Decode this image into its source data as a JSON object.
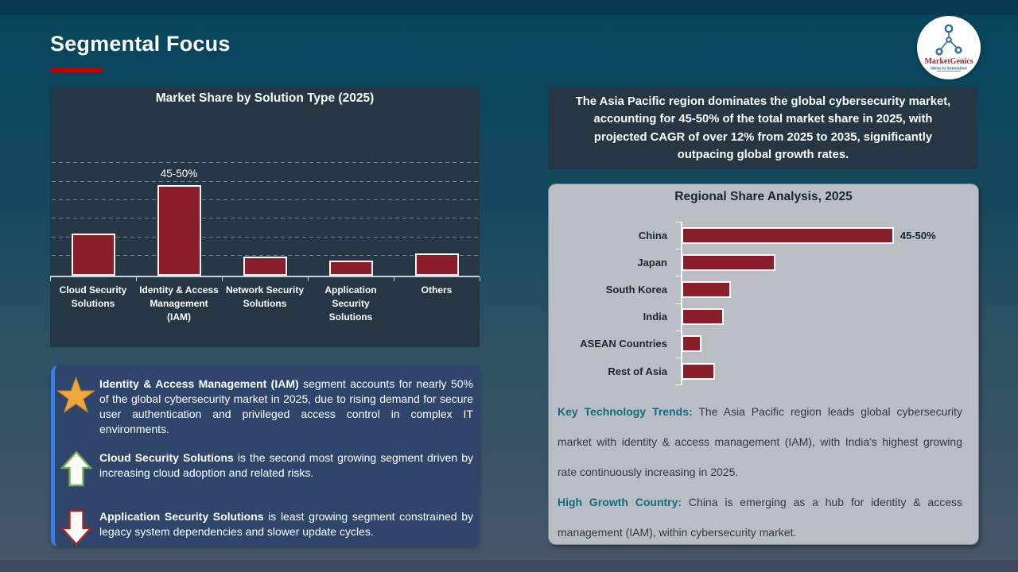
{
  "slide": {
    "title": "Segmental Focus",
    "logo": {
      "brand": "MarketGenics",
      "tagline": "Ideas to Innovation",
      "icon": "network-nodes-icon"
    }
  },
  "colors": {
    "bar_red": "#8A1E2A",
    "accent_red": "#C00000",
    "panel_dark": "#253744",
    "notes_navy": "#30456C",
    "notes_border_blue": "#3E7CDC",
    "gray_panel": "#B9BEC5",
    "teal_label": "#166A7D"
  },
  "chart_data": [
    {
      "type": "bar",
      "title": "Market Share by Solution Type (2025)",
      "categories": [
        "Cloud Security Solutions",
        "Identity & Access Management (IAM)",
        "Network Security Solutions",
        "Application Security Solutions",
        "Others"
      ],
      "values": [
        22,
        47.5,
        10,
        8,
        11.5
      ],
      "data_labels": [
        "",
        "45-50%",
        "",
        "",
        ""
      ],
      "xlabel": "",
      "ylabel": "",
      "ylim": [
        0,
        55
      ],
      "grid": "dashed-horizontal",
      "bar_color": "#8A1E2A",
      "legend": "none"
    },
    {
      "type": "bar",
      "orientation": "horizontal",
      "title": "Regional Share Analysis, 2025",
      "categories": [
        "China",
        "Japan",
        "South Korea",
        "India",
        "ASEAN Countries",
        "Rest of Asia"
      ],
      "values": [
        47.5,
        21,
        11,
        9.5,
        4.5,
        7.5
      ],
      "data_labels": [
        "45-50%",
        "",
        "",
        "",
        "",
        ""
      ],
      "xlim": [
        0,
        55
      ],
      "bar_color": "#8A1E2A",
      "legend": "none"
    }
  ],
  "insight_box": {
    "items": [
      {
        "icon": "star-icon",
        "bold": "Identity & Access Management (IAM)",
        "text": " segment accounts for nearly 50% of the global cybersecurity market in 2025, due to rising demand for secure user authentication and privileged access control in complex IT environments."
      },
      {
        "icon": "up-arrow-icon",
        "bold": "Cloud Security Solutions",
        "text": " is the second most growing segment driven by increasing cloud adoption and related risks."
      },
      {
        "icon": "down-arrow-icon",
        "bold": "Application Security Solutions",
        "text": " is least growing segment constrained by legacy system dependencies and slower update cycles."
      }
    ]
  },
  "headline_box": {
    "text": "The Asia Pacific region dominates the global cybersecurity market, accounting for 45-50% of the total market share in 2025, with projected CAGR of over 12% from 2025 to 2035, significantly outpacing global growth rates."
  },
  "regional_notes": [
    {
      "label": "Key Technology Trends:",
      "text": " The Asia Pacific region leads global cybersecurity market with identity & access management (IAM), with India's highest growing rate continuously increasing in 2025."
    },
    {
      "label": "High Growth Country:",
      "text": " China is emerging as a hub for identity & access management (IAM), within cybersecurity market."
    }
  ]
}
